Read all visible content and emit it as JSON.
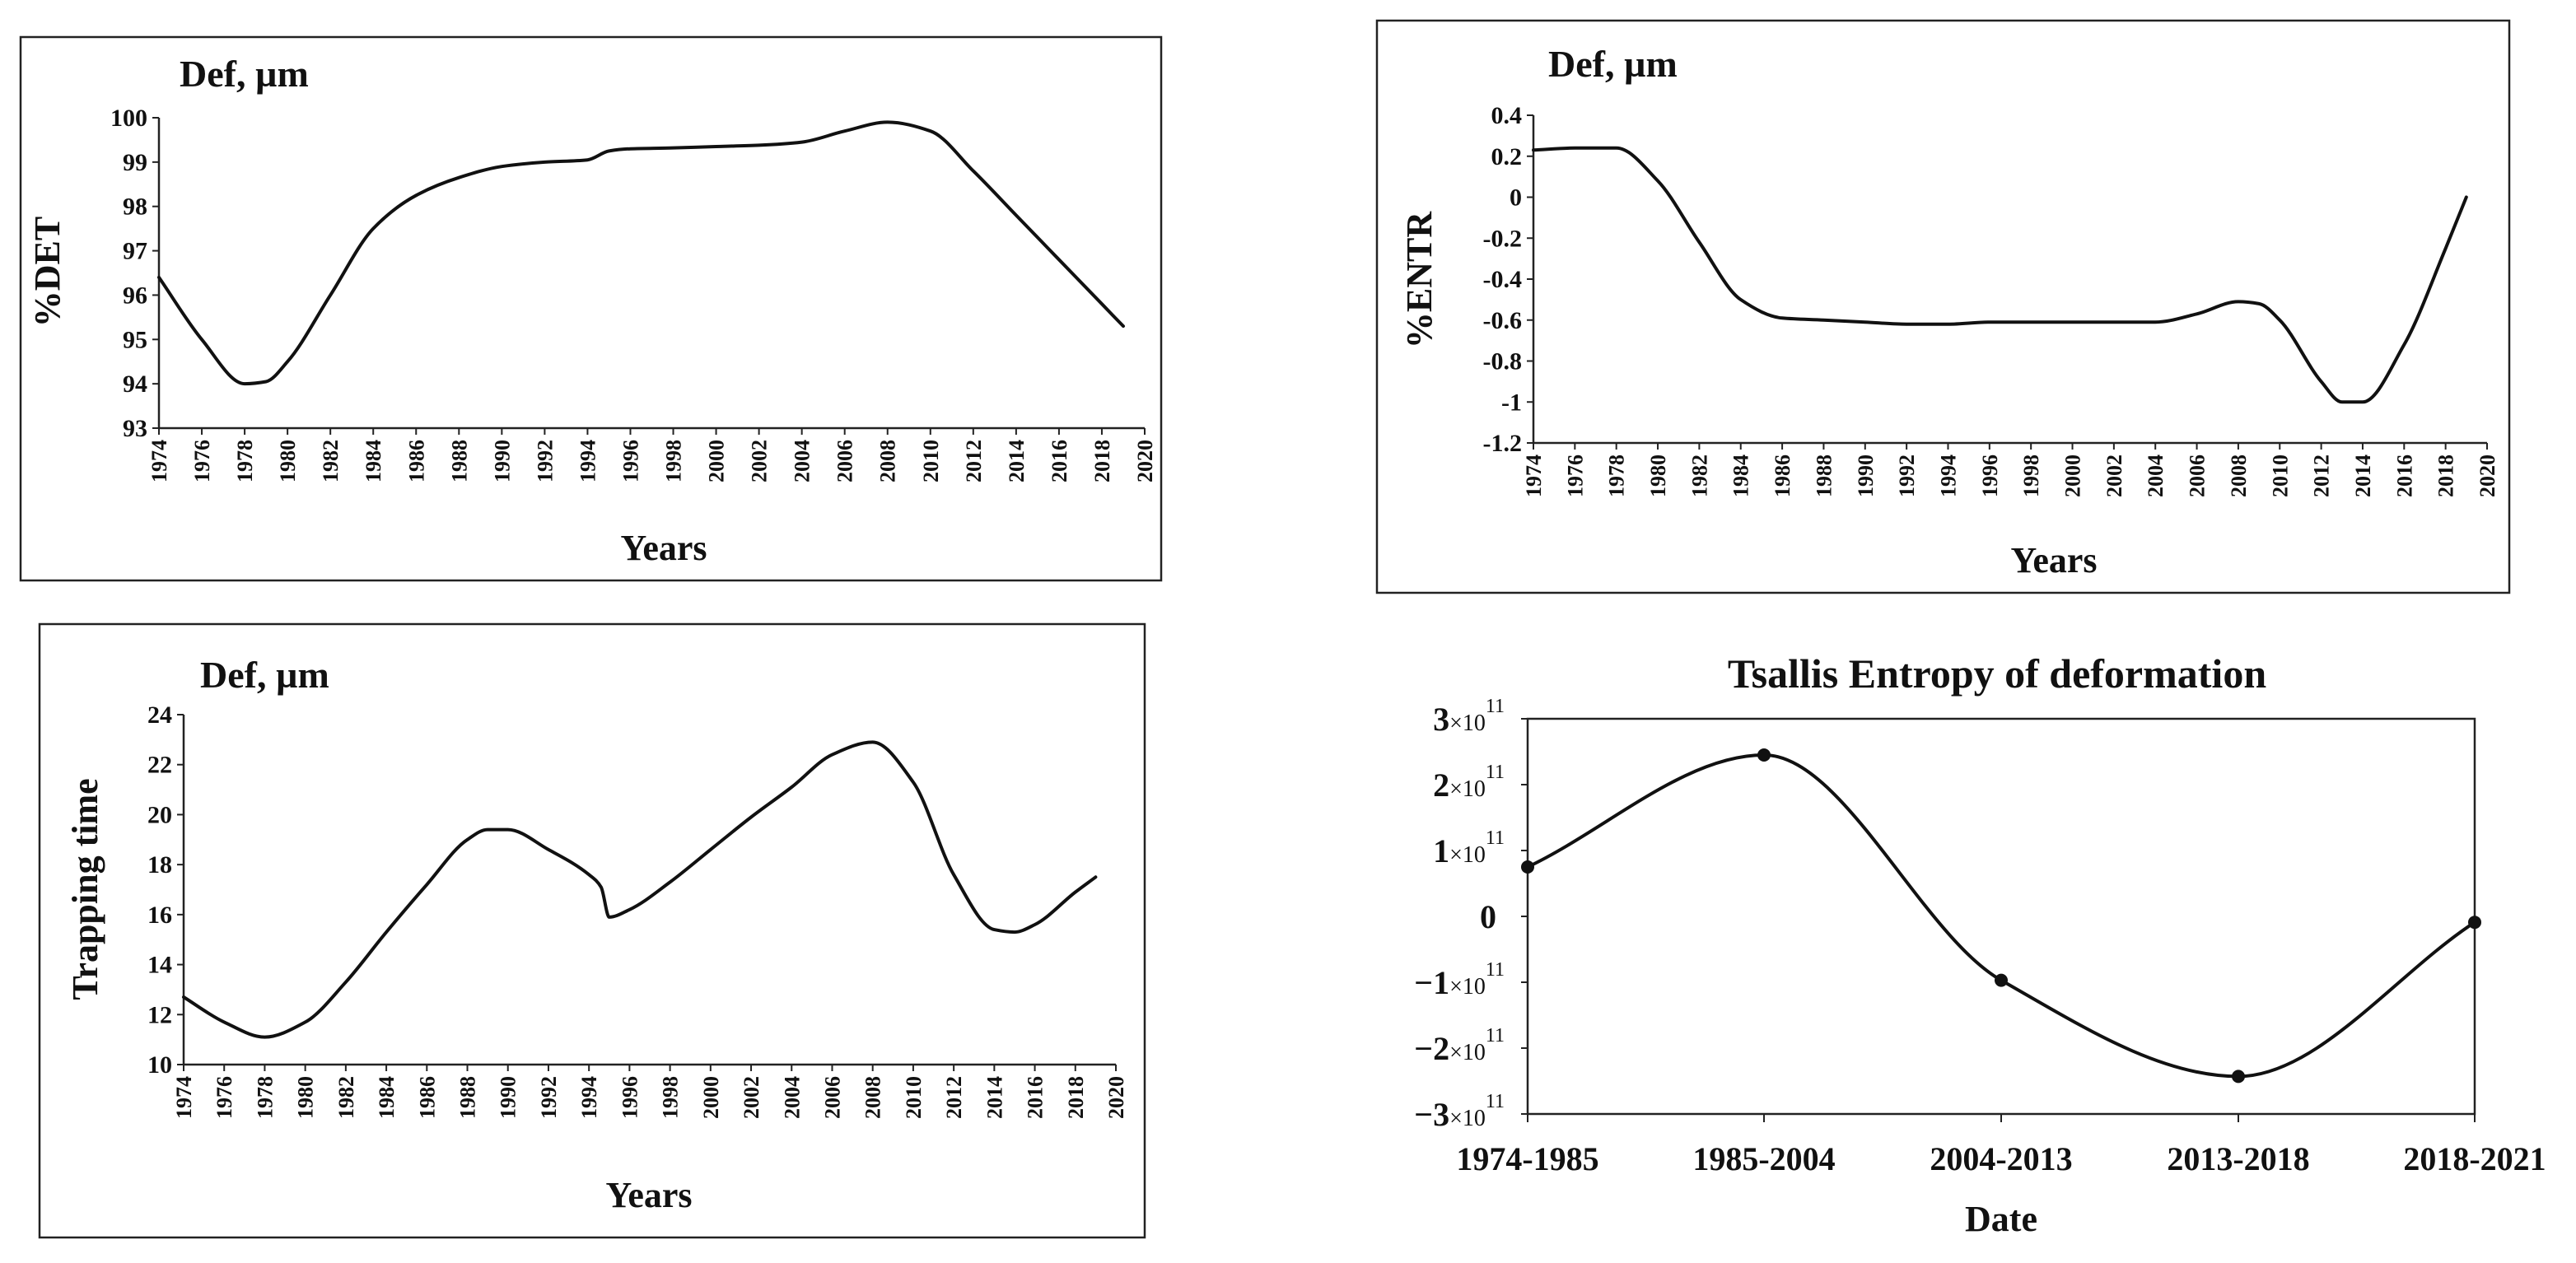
{
  "chart_data": [
    {
      "id": "det",
      "type": "line",
      "annotation": "Def, µm",
      "ylabel": "%DET",
      "xlabel": "Years",
      "ylim": [
        93,
        100
      ],
      "yticks": [
        93,
        94,
        95,
        96,
        97,
        98,
        99,
        100
      ],
      "xlim": [
        1974,
        2020
      ],
      "x": [
        1974,
        1976,
        1978,
        1979,
        1980,
        1982,
        1984,
        1986,
        1988,
        1990,
        1992,
        1994,
        1995,
        1996,
        1998,
        2000,
        2002,
        2004,
        2006,
        2008,
        2010,
        2012,
        2014,
        2016,
        2018,
        2019
      ],
      "y": [
        96.4,
        95.0,
        94.0,
        94.05,
        94.5,
        96.0,
        97.5,
        98.25,
        98.65,
        98.9,
        99.0,
        99.05,
        99.25,
        99.3,
        99.32,
        99.35,
        99.38,
        99.45,
        99.7,
        99.9,
        99.7,
        98.8,
        97.8,
        96.8,
        95.8,
        95.3
      ]
    },
    {
      "id": "entr",
      "type": "line",
      "annotation": "Def, µm",
      "ylabel": "%ENTR",
      "xlabel": "Years",
      "ylim": [
        -1.2,
        0.4
      ],
      "yticks": [
        "-1.2",
        "-1",
        "-0.8",
        "-0.6",
        "-0.4",
        "-0.2",
        "0",
        "0.2",
        "0.4"
      ],
      "xlim": [
        1974,
        2020
      ],
      "x": [
        1974,
        1976,
        1978,
        1980,
        1982,
        1984,
        1986,
        1988,
        1990,
        1992,
        1994,
        1996,
        1998,
        2000,
        2002,
        2004,
        2006,
        2008,
        2009,
        2010,
        2012,
        2013,
        2014,
        2016,
        2018,
        2019
      ],
      "y": [
        0.23,
        0.24,
        0.24,
        0.08,
        -0.22,
        -0.5,
        -0.59,
        -0.6,
        -0.61,
        -0.62,
        -0.62,
        -0.61,
        -0.61,
        -0.61,
        -0.61,
        -0.61,
        -0.57,
        -0.51,
        -0.52,
        -0.6,
        -0.9,
        -1.0,
        -1.0,
        -0.72,
        -0.25,
        0.0
      ]
    },
    {
      "id": "trap",
      "type": "line",
      "annotation": "Def, µm",
      "ylabel": "Trapping time",
      "xlabel": "Years",
      "ylim": [
        10,
        24
      ],
      "yticks": [
        10,
        12,
        14,
        16,
        18,
        20,
        22,
        24
      ],
      "xlim": [
        1974,
        2020
      ],
      "x": [
        1974,
        1976,
        1978,
        1980,
        1982,
        1984,
        1986,
        1988,
        1989,
        1990,
        1992,
        1994,
        1994.6,
        1995,
        1996,
        1998,
        2000,
        2002,
        2004,
        2006,
        2008,
        2010,
        2012,
        2014,
        2015,
        2016,
        2018,
        2019
      ],
      "y": [
        12.7,
        11.7,
        11.1,
        11.7,
        13.3,
        15.3,
        17.2,
        19.0,
        19.4,
        19.4,
        18.6,
        17.6,
        17.1,
        15.9,
        16.2,
        17.3,
        18.6,
        19.9,
        21.1,
        22.4,
        22.9,
        21.3,
        17.6,
        15.4,
        15.3,
        15.6,
        16.9,
        17.5
      ]
    },
    {
      "id": "tsallis",
      "type": "line",
      "title": "Tsallis Entropy of deformation",
      "xlabel": "Date",
      "ylabel": "",
      "categories": [
        "1974-1985",
        "1985-2004",
        "2004-2013",
        "2013-2018",
        "2018-2021"
      ],
      "values": [
        75000000000,
        245000000000,
        -97000000000,
        -243000000000,
        -9000000000
      ],
      "ylim": [
        -300000000000,
        300000000000
      ],
      "ytick_values": [
        -300000000000,
        -200000000000,
        -100000000000,
        0,
        100000000000,
        200000000000,
        300000000000
      ],
      "ytick_labels": [
        {
          "mantissa": "−3",
          "times": "×10",
          "exponent": "11"
        },
        {
          "mantissa": "−2",
          "times": "×10",
          "exponent": "11"
        },
        {
          "mantissa": "−1",
          "times": "×10",
          "exponent": "11"
        },
        {
          "mantissa": "0",
          "times": "",
          "exponent": ""
        },
        {
          "mantissa": "1",
          "times": "×10",
          "exponent": "11"
        },
        {
          "mantissa": "2",
          "times": "×10",
          "exponent": "11"
        },
        {
          "mantissa": "3",
          "times": "×10",
          "exponent": "11"
        }
      ]
    }
  ]
}
